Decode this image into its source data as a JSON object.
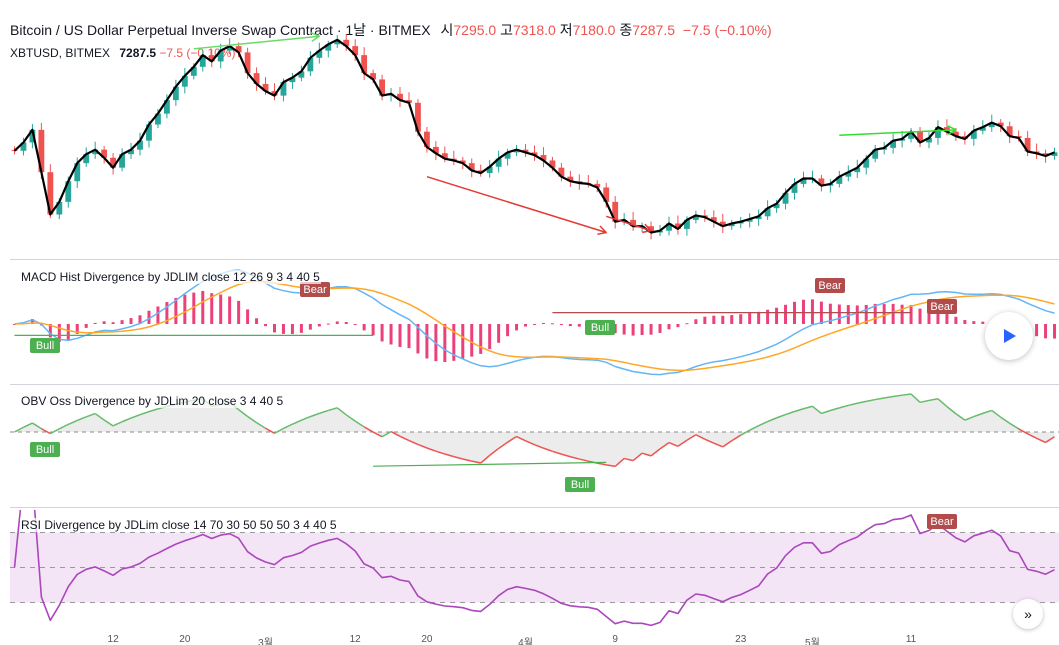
{
  "header": {
    "title": "Bitcoin / US Dollar Perpetual Inverse Swap Contract · 1날 · BITMEX",
    "o_label": "시",
    "o_value": "7295.0",
    "h_label": "고",
    "h_value": "7318.0",
    "l_label": "저",
    "l_value": "7180.0",
    "c_label": "종",
    "c_value": "7287.5",
    "change": "−7.5 (−0.10%)"
  },
  "sub": {
    "symbol": "XBTUSD, BITMEX",
    "last": "7287.5",
    "change": "−7.5 (−0.10%)"
  },
  "indicators": {
    "macd": "MACD Hist Divergence by JDLIM close 12 26 9 3 4 40 5",
    "obv": "OBV Oss Divergence by JDLim 20 close 3 4 40 5",
    "rsi": "RSI Divergence by JDLim close 14 70 30 50 50 50 3 4 40 5"
  },
  "badges": {
    "bull": "Bull",
    "bear": "Bear"
  },
  "colors": {
    "up": "#26a69a",
    "down": "#ef5350",
    "macd_hist": "#ec407a",
    "macd_line": "#64b5f6",
    "signal_line": "#ffa726",
    "rsi_line": "#ab47bc",
    "rsi_band": "#f3e5f5",
    "bull_badge": "#4caf50",
    "bear_badge": "#b04c4c",
    "price_line": "#000000"
  },
  "xaxis": {
    "labels": [
      "12",
      "20",
      "3월",
      "12",
      "20",
      "4월",
      "9",
      "23",
      "5월",
      "11"
    ]
  },
  "icons": [
    "play-icon",
    "fast-forward-icon"
  ],
  "chart_data": {
    "type": "candlestick",
    "series": [
      {
        "name": "XBTUSD",
        "close": [
          7287.5,
          7380,
          7520,
          7050,
          6580,
          6720,
          6950,
          7150,
          7250,
          7300,
          7210,
          7100,
          7250,
          7300,
          7400,
          7580,
          7700,
          7850,
          8000,
          8120,
          8220,
          8350,
          8280,
          8400,
          8450,
          8380,
          8150,
          8030,
          7950,
          7900,
          8050,
          8100,
          8170,
          8320,
          8400,
          8470,
          8520,
          8450,
          8350,
          8150,
          8080,
          7900,
          7920,
          7850,
          7820,
          7500,
          7330,
          7260,
          7200,
          7180,
          7150,
          7070,
          7040,
          7110,
          7200,
          7270,
          7300,
          7270,
          7240,
          7180,
          7100,
          7000,
          6950,
          6930,
          6920,
          6880,
          6720,
          6500,
          6520,
          6450,
          6450,
          6380,
          6400,
          6480,
          6420,
          6520,
          6570,
          6550,
          6500,
          6450,
          6480,
          6500,
          6530,
          6560,
          6650,
          6700,
          6820,
          6920,
          6980,
          6980,
          6900,
          6920,
          7000,
          7050,
          7100,
          7200,
          7300,
          7320,
          7400,
          7420,
          7500,
          7380,
          7430,
          7550,
          7500,
          7450,
          7420,
          7510,
          7550,
          7600,
          7560,
          7450,
          7430,
          7280,
          7260,
          7230,
          7270
        ]
      }
    ]
  }
}
